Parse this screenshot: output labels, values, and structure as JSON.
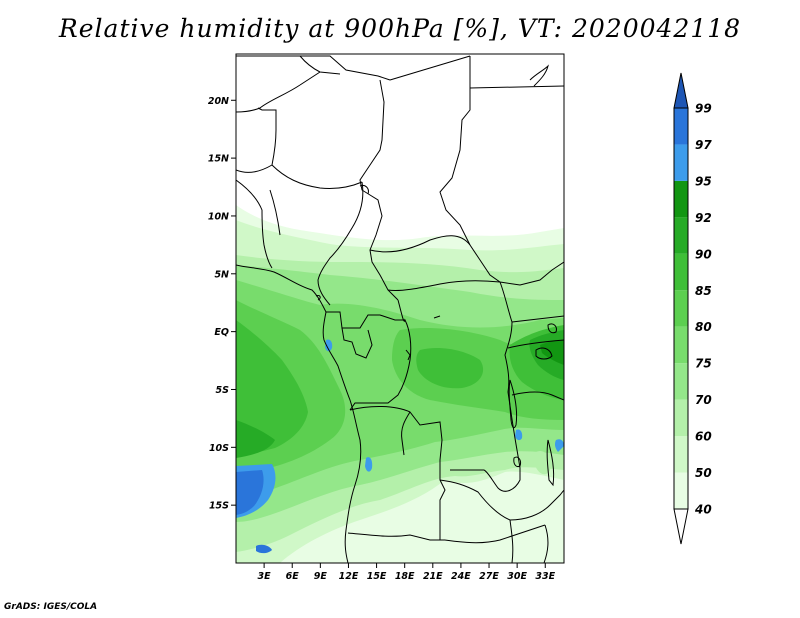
{
  "title": "Relative humidity at 900hPa [%], VT: 2020042118",
  "footer": "GrADS: IGES/COLA",
  "map": {
    "lon_range": [
      0,
      35
    ],
    "lat_range": [
      -20,
      24
    ],
    "lat_ticks": [
      {
        "value": 20,
        "label": "20N"
      },
      {
        "value": 15,
        "label": "15N"
      },
      {
        "value": 10,
        "label": "10N"
      },
      {
        "value": 5,
        "label": "5N"
      },
      {
        "value": 0,
        "label": "EQ"
      },
      {
        "value": -5,
        "label": "5S"
      },
      {
        "value": -10,
        "label": "10S"
      },
      {
        "value": -15,
        "label": "15S"
      }
    ],
    "lon_ticks": [
      {
        "value": 3,
        "label": "3E"
      },
      {
        "value": 6,
        "label": "6E"
      },
      {
        "value": 9,
        "label": "9E"
      },
      {
        "value": 12,
        "label": "12E"
      },
      {
        "value": 15,
        "label": "15E"
      },
      {
        "value": 18,
        "label": "18E"
      },
      {
        "value": 21,
        "label": "21E"
      },
      {
        "value": 24,
        "label": "24E"
      },
      {
        "value": 27,
        "label": "27E"
      },
      {
        "value": 30,
        "label": "30E"
      },
      {
        "value": 33,
        "label": "33E"
      }
    ]
  },
  "colorbar": {
    "labels": [
      "40",
      "50",
      "60",
      "70",
      "75",
      "80",
      "85",
      "90",
      "92",
      "95",
      "97",
      "99"
    ],
    "colors": {
      "below_40": "#ffffff",
      "40-50": "#e8fde4",
      "50-60": "#d0f8c8",
      "60-70": "#b4f0aa",
      "70-75": "#94e78a",
      "75-80": "#78dc6c",
      "80-85": "#5ccf50",
      "85-90": "#3fbf38",
      "90-92": "#26ab26",
      "92-95": "#129612",
      "95-97": "#3d9ceb",
      "97-99": "#2a75da",
      "above_99": "#1e56b4"
    }
  }
}
